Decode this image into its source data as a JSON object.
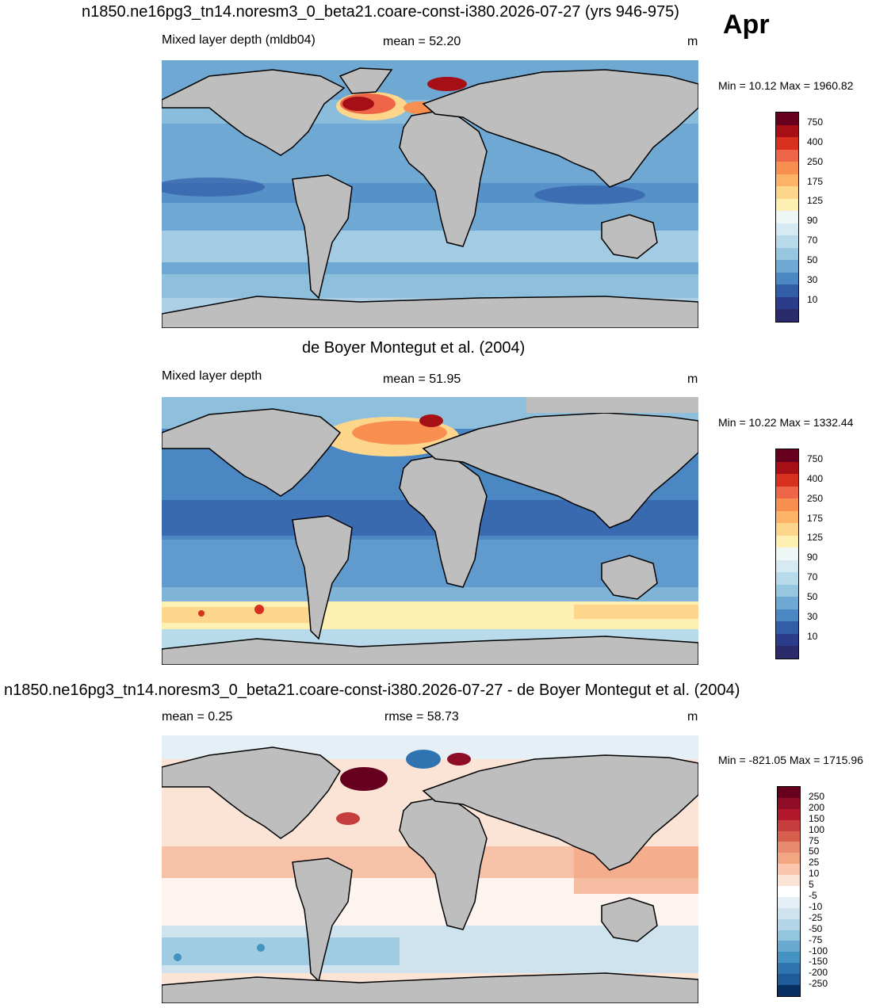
{
  "figure": {
    "suptitle": "n1850.ne16pg3_tn14.noresm3_0_beta21.coare-const-i380.2026-07-27 (yrs 946-975)",
    "month": "Apr"
  },
  "panels": [
    {
      "title": "",
      "left_label": "Mixed layer depth (mldb04)",
      "center_label": "mean =  52.20",
      "units": "m",
      "minmax": "Min =  10.12 Max = 1960.82",
      "colorbar": {
        "labels": [
          "750",
          "400",
          "250",
          "175",
          "125",
          "90",
          "70",
          "50",
          "30",
          "10"
        ],
        "colors": [
          "#67001f",
          "#a50f15",
          "#d7301f",
          "#ef6548",
          "#f88e4f",
          "#fcb365",
          "#fdd68c",
          "#fdf0b2",
          "#eef7f6",
          "#d5eaf2",
          "#b9daea",
          "#96c6e0",
          "#6fa8d3",
          "#4b88c3",
          "#325ea8",
          "#2b3d8a",
          "#2b2a6b"
        ],
        "skew": 0
      }
    },
    {
      "title": "de Boyer Montegut et al. (2004)",
      "left_label": "Mixed layer depth",
      "center_label": "mean =  51.95",
      "units": "m",
      "minmax": "Min =  10.22 Max = 1332.44",
      "colorbar": {
        "labels": [
          "750",
          "400",
          "250",
          "175",
          "125",
          "90",
          "70",
          "50",
          "30",
          "10"
        ],
        "colors": [
          "#67001f",
          "#a50f15",
          "#d7301f",
          "#ef6548",
          "#f88e4f",
          "#fcb365",
          "#fdd68c",
          "#fdf0b2",
          "#eef7f6",
          "#d5eaf2",
          "#b9daea",
          "#96c6e0",
          "#6fa8d3",
          "#4b88c3",
          "#325ea8",
          "#2b3d8a",
          "#2b2a6b"
        ],
        "skew": 1
      }
    },
    {
      "title": "n1850.ne16pg3_tn14.noresm3_0_beta21.coare-const-i380.2026-07-27 - de Boyer Montegut et al. (2004)",
      "left_label": "mean =   0.25",
      "center_label": "rmse =  58.73",
      "units": "m",
      "minmax": "Min = -821.05 Max = 1715.96",
      "colorbar": {
        "labels": [
          "250",
          "200",
          "150",
          "100",
          "75",
          "50",
          "25",
          "10",
          "5",
          "-5",
          "-10",
          "-25",
          "-50",
          "-75",
          "-100",
          "-150",
          "-200",
          "-250"
        ],
        "colors": [
          "#67001f",
          "#8e0c25",
          "#b2182b",
          "#c53e3d",
          "#d6604d",
          "#e88a6d",
          "#f4a582",
          "#fac6ad",
          "#fbe3d6",
          "#ffffff",
          "#e4eff6",
          "#cfe3ef",
          "#b4d5e8",
          "#92c5de",
          "#6aaad0",
          "#4393c3",
          "#2f74b0",
          "#1f5b9a",
          "#053061"
        ],
        "skew": 2
      }
    }
  ]
}
